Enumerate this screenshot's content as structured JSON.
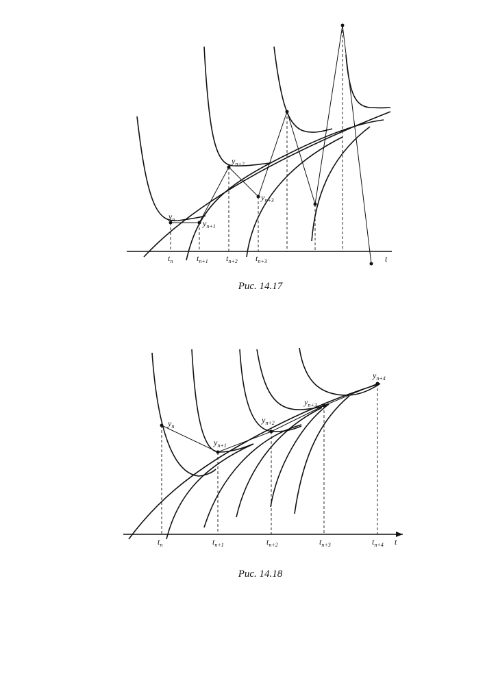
{
  "figures": [
    {
      "labels": [
        {
          "base": "y",
          "sub": "n"
        },
        {
          "base": "y",
          "sub": "n+1"
        },
        {
          "base": "y",
          "sub": "n+2"
        },
        {
          "base": "y",
          "sub": "n+3"
        }
      ],
      "ticks": [
        {
          "base": "t",
          "sub": "n"
        },
        {
          "base": "t",
          "sub": "n+1"
        },
        {
          "base": "t",
          "sub": "n+2"
        },
        {
          "base": "t",
          "sub": "n+3"
        }
      ],
      "axis": "t",
      "caption": "Рис. 14.17"
    },
    {
      "labels": [
        {
          "base": "y",
          "sub": "n"
        },
        {
          "base": "y",
          "sub": "n+1"
        },
        {
          "base": "y",
          "sub": "n+2"
        },
        {
          "base": "y",
          "sub": "n+3"
        },
        {
          "base": "y",
          "sub": "n+4"
        }
      ],
      "ticks": [
        {
          "base": "t",
          "sub": "n"
        },
        {
          "base": "t",
          "sub": "n+1"
        },
        {
          "base": "t",
          "sub": "n+2"
        },
        {
          "base": "t",
          "sub": "n+3"
        },
        {
          "base": "t",
          "sub": "n+4"
        }
      ],
      "axis": "t",
      "caption": "Рис. 14.18"
    }
  ]
}
